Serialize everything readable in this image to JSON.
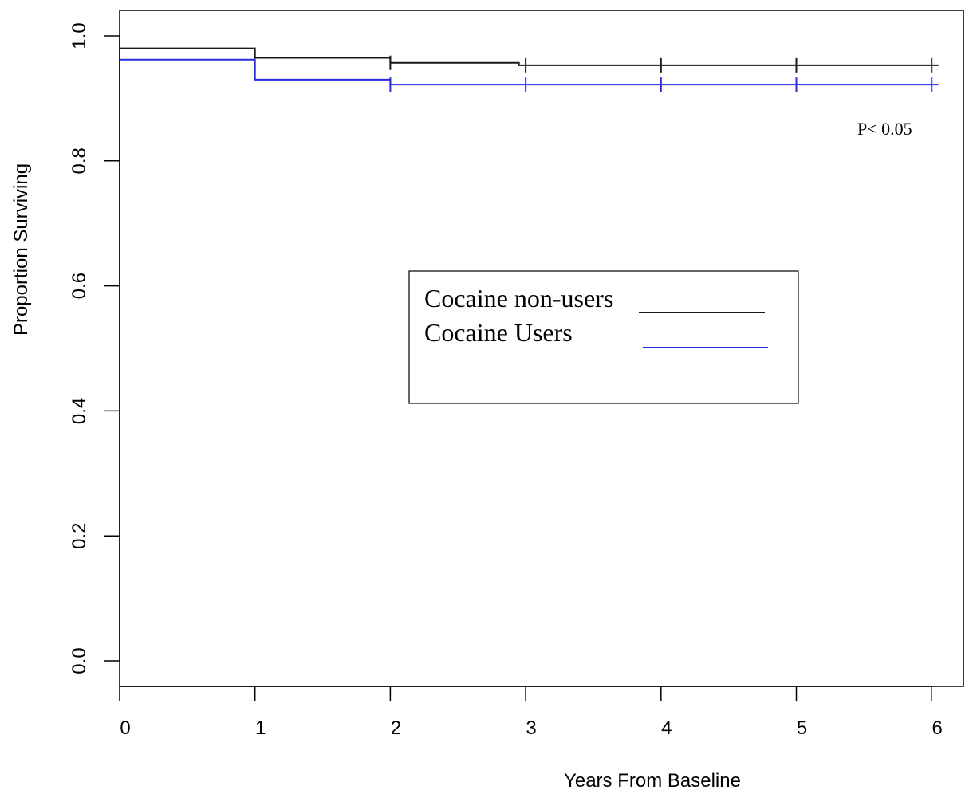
{
  "chart_data": {
    "type": "line",
    "subtype": "kaplan-meier step",
    "title": "",
    "xlabel": "Years From Baseline",
    "ylabel": "Proportion Surviving",
    "xlim": [
      0,
      6
    ],
    "ylim": [
      0,
      1
    ],
    "x_ticks": [
      0,
      1,
      2,
      3,
      4,
      5,
      6
    ],
    "x_tick_labels": [
      "0",
      "1",
      "2",
      "3",
      "4",
      "5",
      "6"
    ],
    "y_ticks": [
      0,
      0.2,
      0.4,
      0.6,
      0.8,
      1
    ],
    "y_tick_labels": [
      "0.0",
      "0.2",
      "0.4",
      "0.6",
      "0.8",
      "1.0"
    ],
    "grid": false,
    "legend_placement": "center",
    "annotation": "P< 0.05",
    "series": [
      {
        "name": "Cocaine non-users",
        "color": "#1a1a1a",
        "steps": [
          {
            "x": 0,
            "y": 0.98
          },
          {
            "x": 1,
            "y": 0.965
          },
          {
            "x": 2,
            "y": 0.957
          },
          {
            "x": 2.95,
            "y": 0.953
          },
          {
            "x": 6.05,
            "y": 0.953
          }
        ],
        "censor_marks": [
          {
            "x": 2,
            "y": 0.957
          },
          {
            "x": 3,
            "y": 0.953
          },
          {
            "x": 4,
            "y": 0.953
          },
          {
            "x": 5,
            "y": 0.953
          },
          {
            "x": 6,
            "y": 0.953
          }
        ]
      },
      {
        "name": "Cocaine Users",
        "color": "#2a2ae0",
        "steps": [
          {
            "x": 0,
            "y": 0.962
          },
          {
            "x": 1,
            "y": 0.93
          },
          {
            "x": 2,
            "y": 0.922
          },
          {
            "x": 6.05,
            "y": 0.922
          }
        ],
        "censor_marks": [
          {
            "x": 2,
            "y": 0.922
          },
          {
            "x": 3,
            "y": 0.922
          },
          {
            "x": 4,
            "y": 0.922
          },
          {
            "x": 5,
            "y": 0.922
          },
          {
            "x": 6,
            "y": 0.922
          }
        ]
      }
    ]
  }
}
